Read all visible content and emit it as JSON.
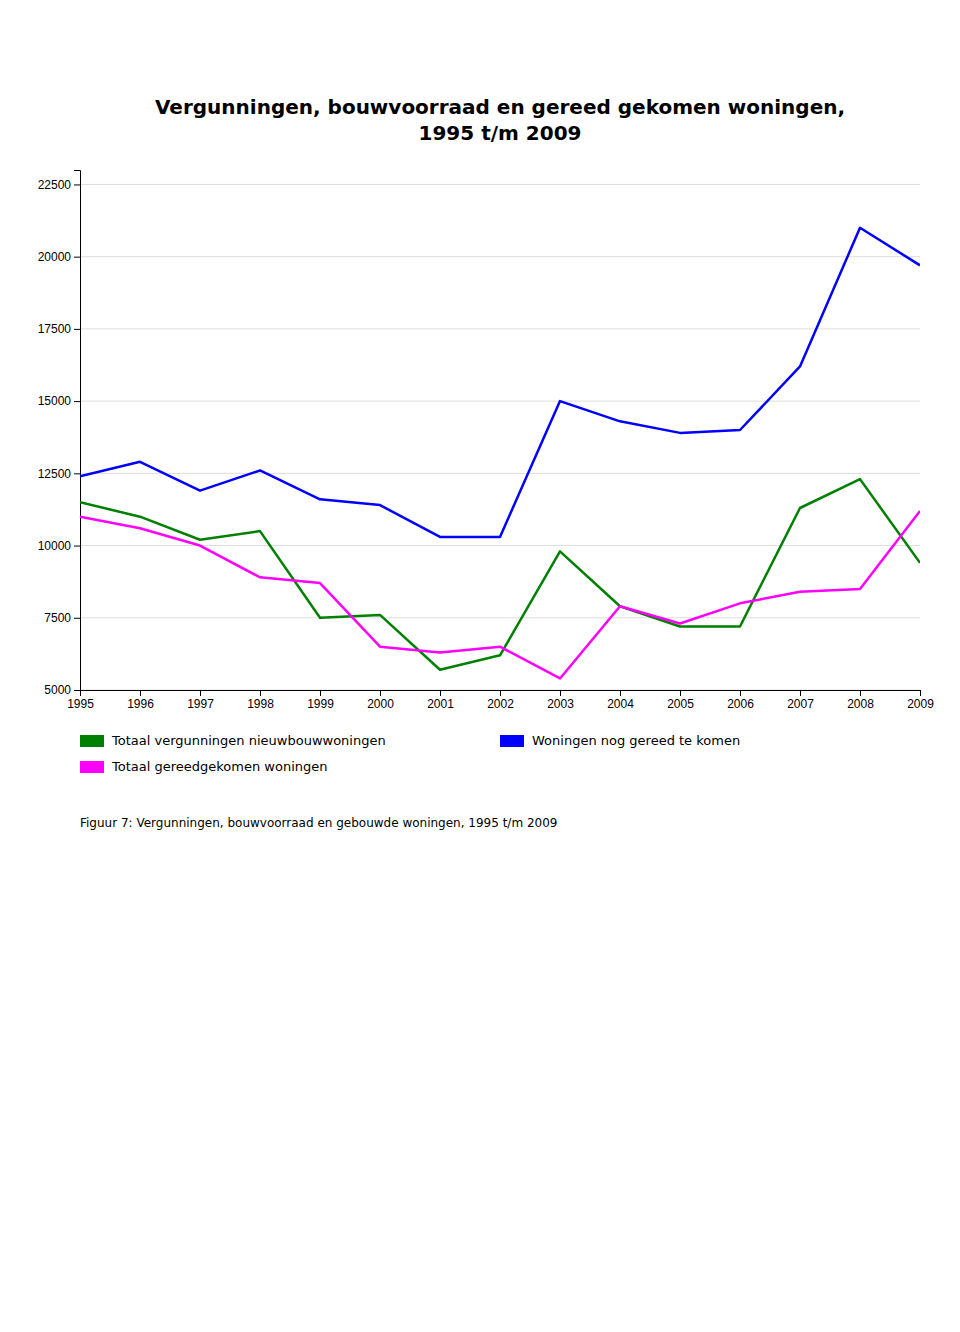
{
  "chart_data": {
    "type": "line",
    "title": "Vergunningen, bouwvoorraad en gereed gekomen woningen,\n1995 t/m 2009",
    "x": [
      1995,
      1996,
      1997,
      1998,
      1999,
      2000,
      2001,
      2002,
      2003,
      2004,
      2005,
      2006,
      2007,
      2008,
      2009
    ],
    "series": [
      {
        "name": "Totaal vergunningen nieuwbouwwoningen",
        "color": "#008000",
        "values": [
          11500,
          11000,
          10200,
          10500,
          7500,
          7600,
          5700,
          6200,
          9800,
          7900,
          7200,
          7200,
          11300,
          12300,
          9400
        ]
      },
      {
        "name": "Woningen nog gereed te komen",
        "color": "#0000FF",
        "values": [
          12400,
          12900,
          11900,
          12600,
          11600,
          11400,
          10300,
          10300,
          15000,
          14300,
          13900,
          14000,
          16200,
          21000,
          19700
        ]
      },
      {
        "name": "Totaal gereedgekomen woningen",
        "color": "#FF00FF",
        "values": [
          11000,
          10600,
          10000,
          8900,
          8700,
          6500,
          6300,
          6500,
          5400,
          7900,
          7300,
          8000,
          8400,
          8500,
          11200
        ]
      }
    ],
    "xlim": [
      1995,
      2009
    ],
    "xticks": [
      1995,
      1996,
      1997,
      1998,
      1999,
      2000,
      2001,
      2002,
      2003,
      2004,
      2005,
      2006,
      2007,
      2008,
      2009
    ],
    "ylim": [
      5000,
      23000
    ],
    "yticks": [
      5000,
      7500,
      10000,
      12500,
      15000,
      17500,
      20000,
      22500
    ],
    "grid": "y",
    "legend": "bottom",
    "annotations": [
      "Figuur 7: Vergunningen, bouwvoorraad en gebouwde woningen, 1995 t/m 2009"
    ]
  }
}
